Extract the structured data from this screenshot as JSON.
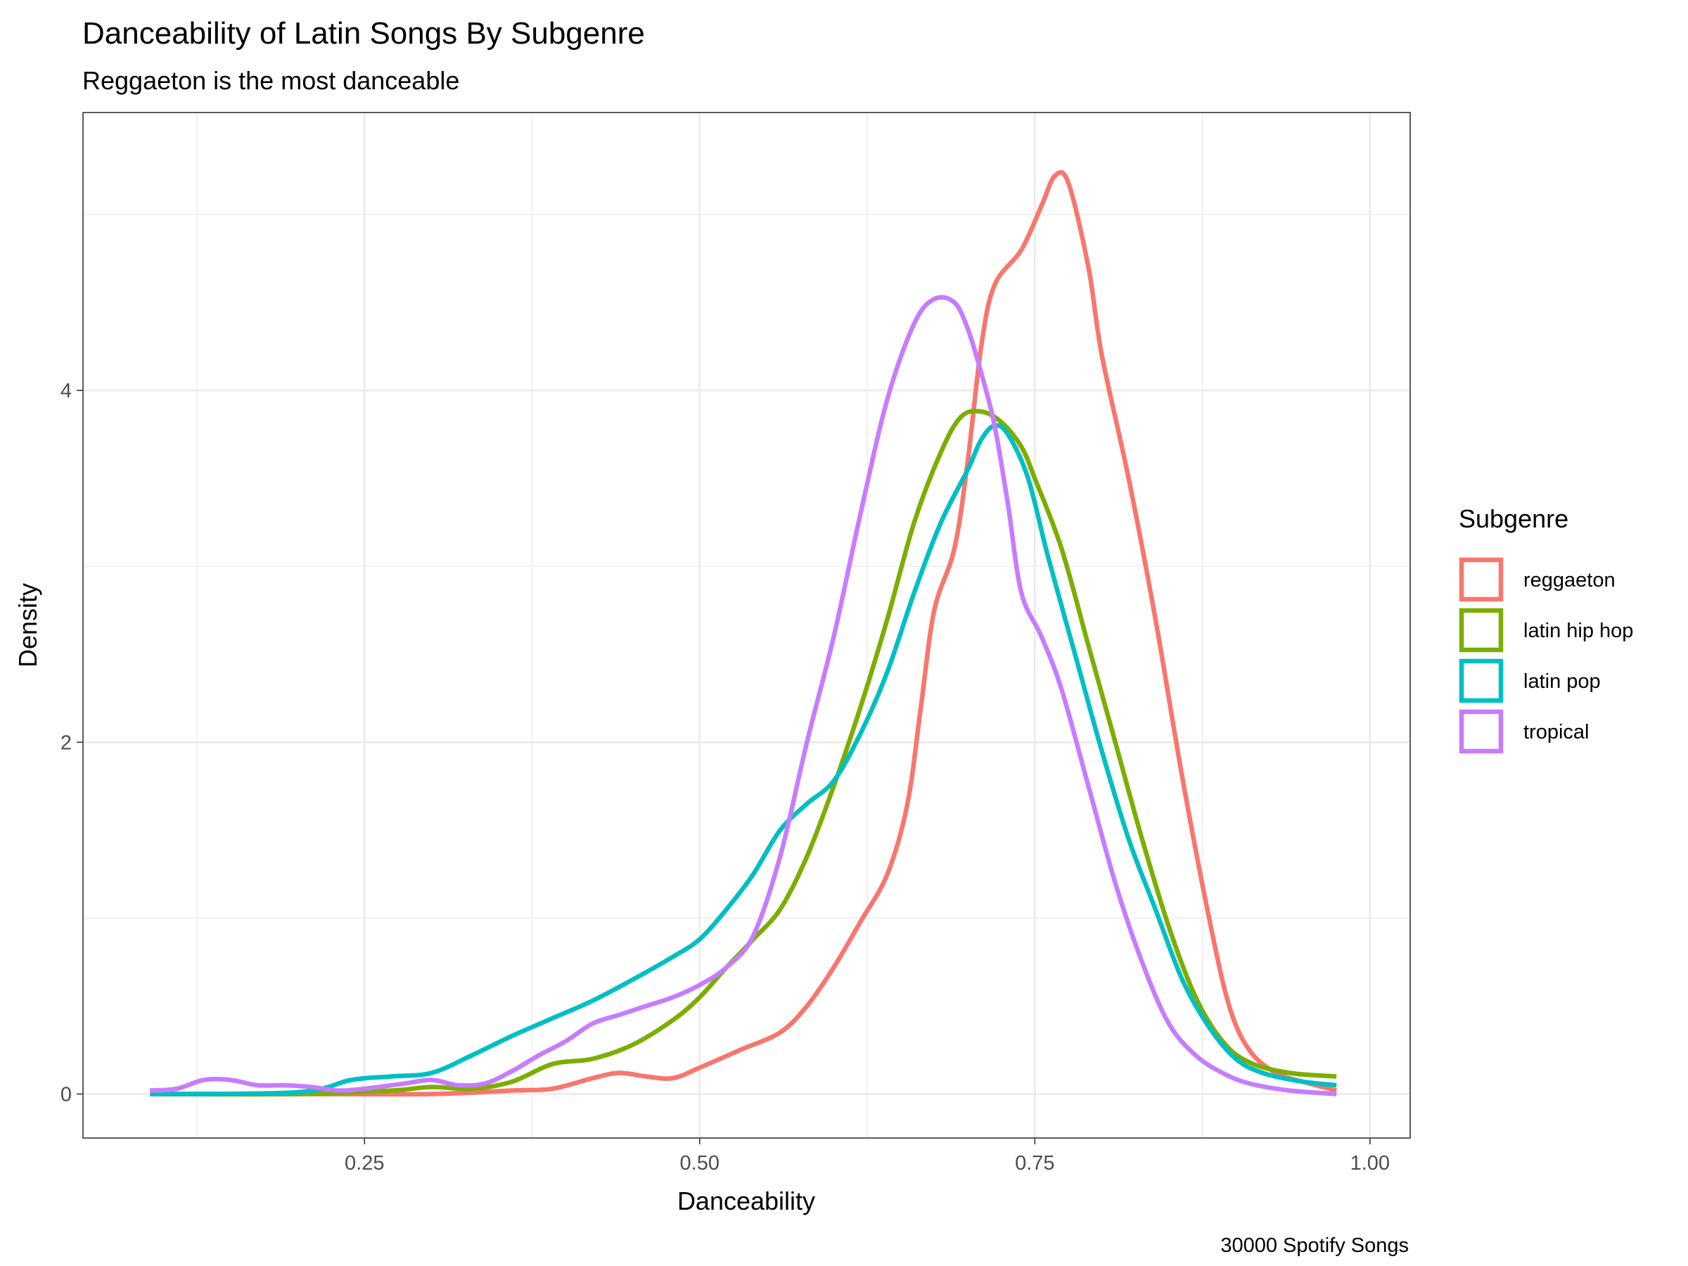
{
  "chart_data": {
    "type": "line",
    "title": "Danceability of Latin Songs By Subgenre",
    "subtitle": "Reggaeton is the most danceable",
    "xlabel": "Danceability",
    "ylabel": "Density",
    "caption": "30000 Spotify Songs",
    "xlim": [
      0.04,
      1.03
    ],
    "ylim": [
      -0.25,
      5.58
    ],
    "x_ticks": [
      0.25,
      0.5,
      0.75,
      1.0
    ],
    "x_tick_labels": [
      "0.25",
      "0.50",
      "0.75",
      "1.00"
    ],
    "y_ticks": [
      0,
      2,
      4
    ],
    "y_tick_labels": [
      "0",
      "2",
      "4"
    ],
    "x_minor_ticks": [
      0.125,
      0.375,
      0.625,
      0.875
    ],
    "y_minor_ticks": [
      1,
      3,
      5
    ],
    "grid": true,
    "legend": {
      "title": "Subgenre",
      "position": "right",
      "items": [
        "reggaeton",
        "latin hip hop",
        "latin pop",
        "tropical"
      ]
    },
    "series": [
      {
        "name": "reggaeton",
        "color": "#F8766D",
        "points": [
          [
            0.09,
            0.0
          ],
          [
            0.2,
            0.0
          ],
          [
            0.3,
            0.0
          ],
          [
            0.36,
            0.02
          ],
          [
            0.39,
            0.03
          ],
          [
            0.42,
            0.09
          ],
          [
            0.44,
            0.12
          ],
          [
            0.46,
            0.1
          ],
          [
            0.48,
            0.09
          ],
          [
            0.5,
            0.15
          ],
          [
            0.53,
            0.25
          ],
          [
            0.56,
            0.35
          ],
          [
            0.58,
            0.5
          ],
          [
            0.6,
            0.72
          ],
          [
            0.62,
            0.98
          ],
          [
            0.64,
            1.25
          ],
          [
            0.655,
            1.65
          ],
          [
            0.665,
            2.2
          ],
          [
            0.675,
            2.75
          ],
          [
            0.69,
            3.1
          ],
          [
            0.7,
            3.6
          ],
          [
            0.71,
            4.25
          ],
          [
            0.72,
            4.6
          ],
          [
            0.74,
            4.8
          ],
          [
            0.755,
            5.05
          ],
          [
            0.765,
            5.22
          ],
          [
            0.775,
            5.18
          ],
          [
            0.79,
            4.7
          ],
          [
            0.8,
            4.2
          ],
          [
            0.82,
            3.5
          ],
          [
            0.84,
            2.7
          ],
          [
            0.86,
            1.8
          ],
          [
            0.88,
            1.0
          ],
          [
            0.895,
            0.5
          ],
          [
            0.91,
            0.25
          ],
          [
            0.93,
            0.12
          ],
          [
            0.955,
            0.06
          ],
          [
            0.975,
            0.02
          ]
        ]
      },
      {
        "name": "latin hip hop",
        "color": "#7CAE00",
        "points": [
          [
            0.09,
            0.0
          ],
          [
            0.2,
            0.0
          ],
          [
            0.27,
            0.02
          ],
          [
            0.3,
            0.04
          ],
          [
            0.33,
            0.03
          ],
          [
            0.36,
            0.07
          ],
          [
            0.39,
            0.17
          ],
          [
            0.42,
            0.2
          ],
          [
            0.45,
            0.28
          ],
          [
            0.48,
            0.42
          ],
          [
            0.5,
            0.55
          ],
          [
            0.52,
            0.72
          ],
          [
            0.54,
            0.88
          ],
          [
            0.56,
            1.05
          ],
          [
            0.58,
            1.35
          ],
          [
            0.6,
            1.75
          ],
          [
            0.62,
            2.2
          ],
          [
            0.64,
            2.7
          ],
          [
            0.66,
            3.25
          ],
          [
            0.68,
            3.65
          ],
          [
            0.695,
            3.85
          ],
          [
            0.71,
            3.88
          ],
          [
            0.725,
            3.82
          ],
          [
            0.74,
            3.68
          ],
          [
            0.75,
            3.5
          ],
          [
            0.77,
            3.1
          ],
          [
            0.79,
            2.55
          ],
          [
            0.81,
            2.0
          ],
          [
            0.83,
            1.45
          ],
          [
            0.85,
            0.95
          ],
          [
            0.87,
            0.55
          ],
          [
            0.89,
            0.3
          ],
          [
            0.91,
            0.18
          ],
          [
            0.94,
            0.12
          ],
          [
            0.975,
            0.1
          ]
        ]
      },
      {
        "name": "latin pop",
        "color": "#00BFC4",
        "points": [
          [
            0.09,
            0.0
          ],
          [
            0.2,
            0.01
          ],
          [
            0.24,
            0.08
          ],
          [
            0.27,
            0.1
          ],
          [
            0.3,
            0.12
          ],
          [
            0.33,
            0.22
          ],
          [
            0.36,
            0.33
          ],
          [
            0.39,
            0.43
          ],
          [
            0.42,
            0.53
          ],
          [
            0.45,
            0.65
          ],
          [
            0.48,
            0.78
          ],
          [
            0.5,
            0.88
          ],
          [
            0.52,
            1.05
          ],
          [
            0.54,
            1.25
          ],
          [
            0.56,
            1.5
          ],
          [
            0.58,
            1.65
          ],
          [
            0.6,
            1.78
          ],
          [
            0.62,
            2.05
          ],
          [
            0.64,
            2.4
          ],
          [
            0.66,
            2.85
          ],
          [
            0.68,
            3.25
          ],
          [
            0.7,
            3.55
          ],
          [
            0.71,
            3.72
          ],
          [
            0.72,
            3.8
          ],
          [
            0.73,
            3.75
          ],
          [
            0.745,
            3.5
          ],
          [
            0.76,
            3.05
          ],
          [
            0.78,
            2.5
          ],
          [
            0.8,
            1.95
          ],
          [
            0.82,
            1.45
          ],
          [
            0.84,
            1.05
          ],
          [
            0.86,
            0.65
          ],
          [
            0.88,
            0.38
          ],
          [
            0.9,
            0.2
          ],
          [
            0.92,
            0.12
          ],
          [
            0.95,
            0.07
          ],
          [
            0.975,
            0.05
          ]
        ]
      },
      {
        "name": "tropical",
        "color": "#C77CFF",
        "points": [
          [
            0.09,
            0.02
          ],
          [
            0.11,
            0.03
          ],
          [
            0.13,
            0.08
          ],
          [
            0.15,
            0.08
          ],
          [
            0.17,
            0.05
          ],
          [
            0.19,
            0.05
          ],
          [
            0.21,
            0.04
          ],
          [
            0.23,
            0.02
          ],
          [
            0.25,
            0.03
          ],
          [
            0.28,
            0.06
          ],
          [
            0.3,
            0.08
          ],
          [
            0.32,
            0.05
          ],
          [
            0.34,
            0.06
          ],
          [
            0.36,
            0.13
          ],
          [
            0.38,
            0.22
          ],
          [
            0.4,
            0.3
          ],
          [
            0.42,
            0.4
          ],
          [
            0.44,
            0.45
          ],
          [
            0.46,
            0.5
          ],
          [
            0.48,
            0.55
          ],
          [
            0.5,
            0.62
          ],
          [
            0.52,
            0.72
          ],
          [
            0.54,
            0.9
          ],
          [
            0.56,
            1.35
          ],
          [
            0.58,
            2.0
          ],
          [
            0.6,
            2.6
          ],
          [
            0.62,
            3.3
          ],
          [
            0.64,
            3.95
          ],
          [
            0.66,
            4.38
          ],
          [
            0.675,
            4.52
          ],
          [
            0.69,
            4.5
          ],
          [
            0.7,
            4.35
          ],
          [
            0.71,
            4.1
          ],
          [
            0.72,
            3.8
          ],
          [
            0.73,
            3.35
          ],
          [
            0.74,
            2.85
          ],
          [
            0.755,
            2.6
          ],
          [
            0.77,
            2.3
          ],
          [
            0.79,
            1.75
          ],
          [
            0.81,
            1.2
          ],
          [
            0.83,
            0.75
          ],
          [
            0.85,
            0.4
          ],
          [
            0.87,
            0.22
          ],
          [
            0.89,
            0.12
          ],
          [
            0.91,
            0.06
          ],
          [
            0.94,
            0.02
          ],
          [
            0.975,
            0.0
          ]
        ]
      }
    ]
  }
}
